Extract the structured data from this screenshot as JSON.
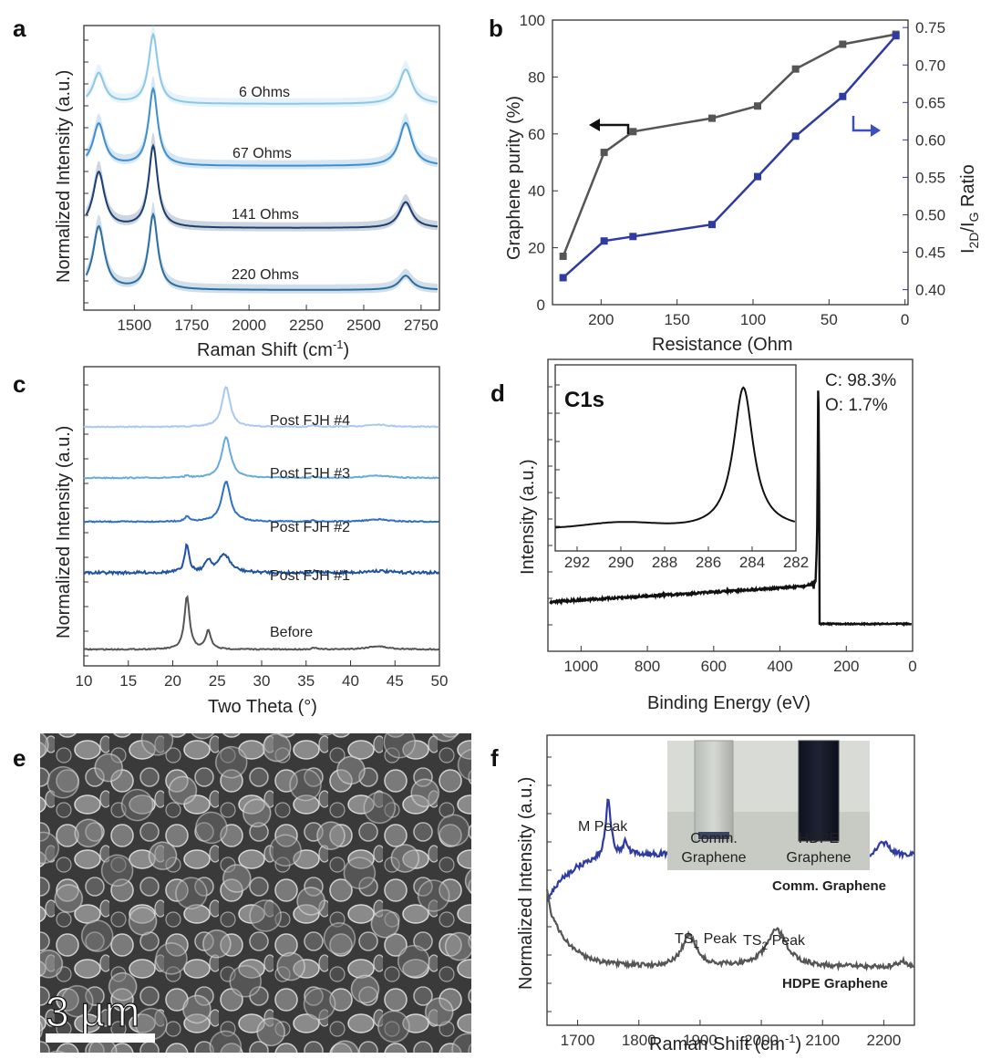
{
  "chart_data": [
    {
      "panel": "a",
      "type": "line",
      "xlabel": "Raman Shift (cm-1)",
      "ylabel": "Normalized Intensity (a.u.)",
      "xlim": [
        1280,
        2830
      ],
      "xticks": [
        "1500",
        "1750",
        "2000",
        "2250",
        "2500",
        "2750"
      ],
      "series": [
        {
          "name": "6 Ohms",
          "color": "#8cc7e6",
          "D": 0.32,
          "G": 0.72,
          "twoD": 0.36
        },
        {
          "name": "67 Ohms",
          "color": "#3f8fcf",
          "D": 0.44,
          "G": 0.8,
          "twoD": 0.45
        },
        {
          "name": "141 Ohms",
          "color": "#1c3f70",
          "D": 0.58,
          "G": 0.85,
          "twoD": 0.27
        },
        {
          "name": "220 Ohms",
          "color": "#2c6f9f",
          "D": 0.66,
          "G": 0.78,
          "twoD": 0.15
        }
      ]
    },
    {
      "panel": "b",
      "type": "line",
      "xlabel": "Resistance (Ohm",
      "ylabel": "Graphene purity (%)",
      "ylabel_right_main": "I",
      "ylabel_right_sub1": "2D",
      "ylabel_right_mid": "/I",
      "ylabel_right_sub2": "G",
      "ylabel_right_tail": " Ratio",
      "x": [
        225,
        198,
        179,
        127,
        97,
        72,
        41,
        6
      ],
      "xlim": [
        232,
        -2
      ],
      "xticks": [
        "200",
        "150",
        "100",
        "50",
        "0"
      ],
      "ylim": [
        0,
        100
      ],
      "yticks": [
        "0",
        "20",
        "40",
        "60",
        "80",
        "100"
      ],
      "y2lim": [
        0.38,
        0.76
      ],
      "y2ticks": [
        "0.40",
        "0.45",
        "0.50",
        "0.55",
        "0.60",
        "0.65",
        "0.70",
        "0.75"
      ],
      "series": [
        {
          "name": "Graphene purity",
          "axis": "left",
          "color": "#555555",
          "values": [
            17,
            53.5,
            60.8,
            65.5,
            69.8,
            82.8,
            91.5,
            95.0
          ]
        },
        {
          "name": "I2D/IG Ratio",
          "axis": "right",
          "color": "#2e3ba0",
          "values": [
            0.416,
            0.465,
            0.471,
            0.487,
            0.551,
            0.605,
            0.658,
            0.739
          ]
        }
      ]
    },
    {
      "panel": "c",
      "type": "line",
      "xlabel": "Two Theta (°)",
      "ylabel": "Normalized Intensity (a.u.)",
      "xlim": [
        10,
        50
      ],
      "xticks": [
        "10",
        "15",
        "20",
        "25",
        "30",
        "35",
        "40",
        "45",
        "50"
      ],
      "series": [
        {
          "name": "Post FJH #4",
          "color": "#aac9ee",
          "peaks": [
            [
              26.0,
              1.0,
              0.55
            ]
          ]
        },
        {
          "name": "Post FJH #3",
          "color": "#67abdc",
          "peaks": [
            [
              26.0,
              1.0,
              0.6
            ],
            [
              21.6,
              0.05,
              0.3
            ]
          ]
        },
        {
          "name": "Post FJH #2",
          "color": "#2f6fc6",
          "peaks": [
            [
              26.0,
              1.0,
              0.6
            ],
            [
              21.6,
              0.12,
              0.3
            ]
          ]
        },
        {
          "name": "Post FJH #1",
          "color": "#1f52a3",
          "peaks": [
            [
              21.6,
              0.85,
              0.3
            ],
            [
              24.0,
              0.35,
              0.4
            ],
            [
              25.8,
              0.55,
              0.8
            ]
          ]
        },
        {
          "name": "Before",
          "color": "#555555",
          "peaks": [
            [
              21.6,
              1.0,
              0.35
            ],
            [
              24.0,
              0.35,
              0.35
            ]
          ]
        }
      ]
    },
    {
      "panel": "d",
      "type": "line",
      "xlabel": "Binding Energy (eV)",
      "ylabel": "Intensity (a.u.)",
      "xlim": [
        1100,
        0
      ],
      "xticks": [
        "1000",
        "800",
        "600",
        "400",
        "200",
        "0"
      ],
      "annotations": [
        "C: 98.3%",
        "O: 1.7%"
      ],
      "inset": {
        "title": "C1s",
        "xlim": [
          293,
          282
        ],
        "xticks": [
          "292",
          "290",
          "288",
          "286",
          "284",
          "282"
        ],
        "peak": 284.4
      }
    },
    {
      "panel": "f",
      "type": "line",
      "xlabel": "Raman Shift (cm-1)",
      "ylabel": "Normalized Intensity (a.u.)",
      "xlim": [
        1650,
        2250
      ],
      "xticks": [
        "1700",
        "1800",
        "1900",
        "2000",
        "2100",
        "2200"
      ],
      "series": [
        {
          "name": "Comm. Graphene",
          "color": "#2e3ba0"
        },
        {
          "name": "HDPE Graphene",
          "color": "#555555"
        }
      ],
      "annotations": [
        "M Peak",
        "TS1 Peak",
        "TS2 Peak"
      ],
      "inset_labels": [
        "Comm.",
        "Graphene",
        "HDPE",
        "Graphene"
      ]
    }
  ],
  "panels": {
    "a": {
      "letter": "a",
      "labels": [
        "6 Ohms",
        "67 Ohms",
        "141 Ohms",
        "220 Ohms"
      ],
      "ylabel": "Normalized Intensity (a.u.)",
      "xlabel_main": "Raman Shift (cm",
      "xlabel_sup": "-1",
      "xlabel_end": ")"
    },
    "b": {
      "letter": "b",
      "ylabel": "Graphene purity (%)",
      "xlabel": "Resistance (Ohm"
    },
    "c": {
      "letter": "c",
      "labels": [
        "Post FJH #4",
        "Post FJH #3",
        "Post FJH #2",
        "Post FJH #1",
        "Before"
      ],
      "ylabel": "Normalized Intensity (a.u.)",
      "xlabel": "Two Theta (°)"
    },
    "d": {
      "letter": "d",
      "ylabel": "Intensity (a.u.)",
      "xlabel": "Binding Energy (eV)",
      "inset_title": "C1s",
      "ann_c": "C: 98.3%",
      "ann_o": "O: 1.7%"
    },
    "e": {
      "letter": "e",
      "scale_text": "3 µm"
    },
    "f": {
      "letter": "f",
      "ylabel": "Normalized Intensity (a.u.)",
      "xlabel_main": "Raman Shift (cm",
      "xlabel_sup": "-1",
      "xlabel_end": ")",
      "m_peak": "M Peak",
      "ts1_main": "TS",
      "ts1_sub": "1",
      "ts1_tail": " Peak",
      "ts2_main": "TS",
      "ts2_sub": "2",
      "ts2_tail": " Peak",
      "comm_label": "Comm. Graphene",
      "hdpe_label": "HDPE Graphene",
      "vial_left_1": "Comm.",
      "vial_left_2": "Graphene",
      "vial_right_1": "HDPE",
      "vial_right_2": "Graphene"
    }
  }
}
